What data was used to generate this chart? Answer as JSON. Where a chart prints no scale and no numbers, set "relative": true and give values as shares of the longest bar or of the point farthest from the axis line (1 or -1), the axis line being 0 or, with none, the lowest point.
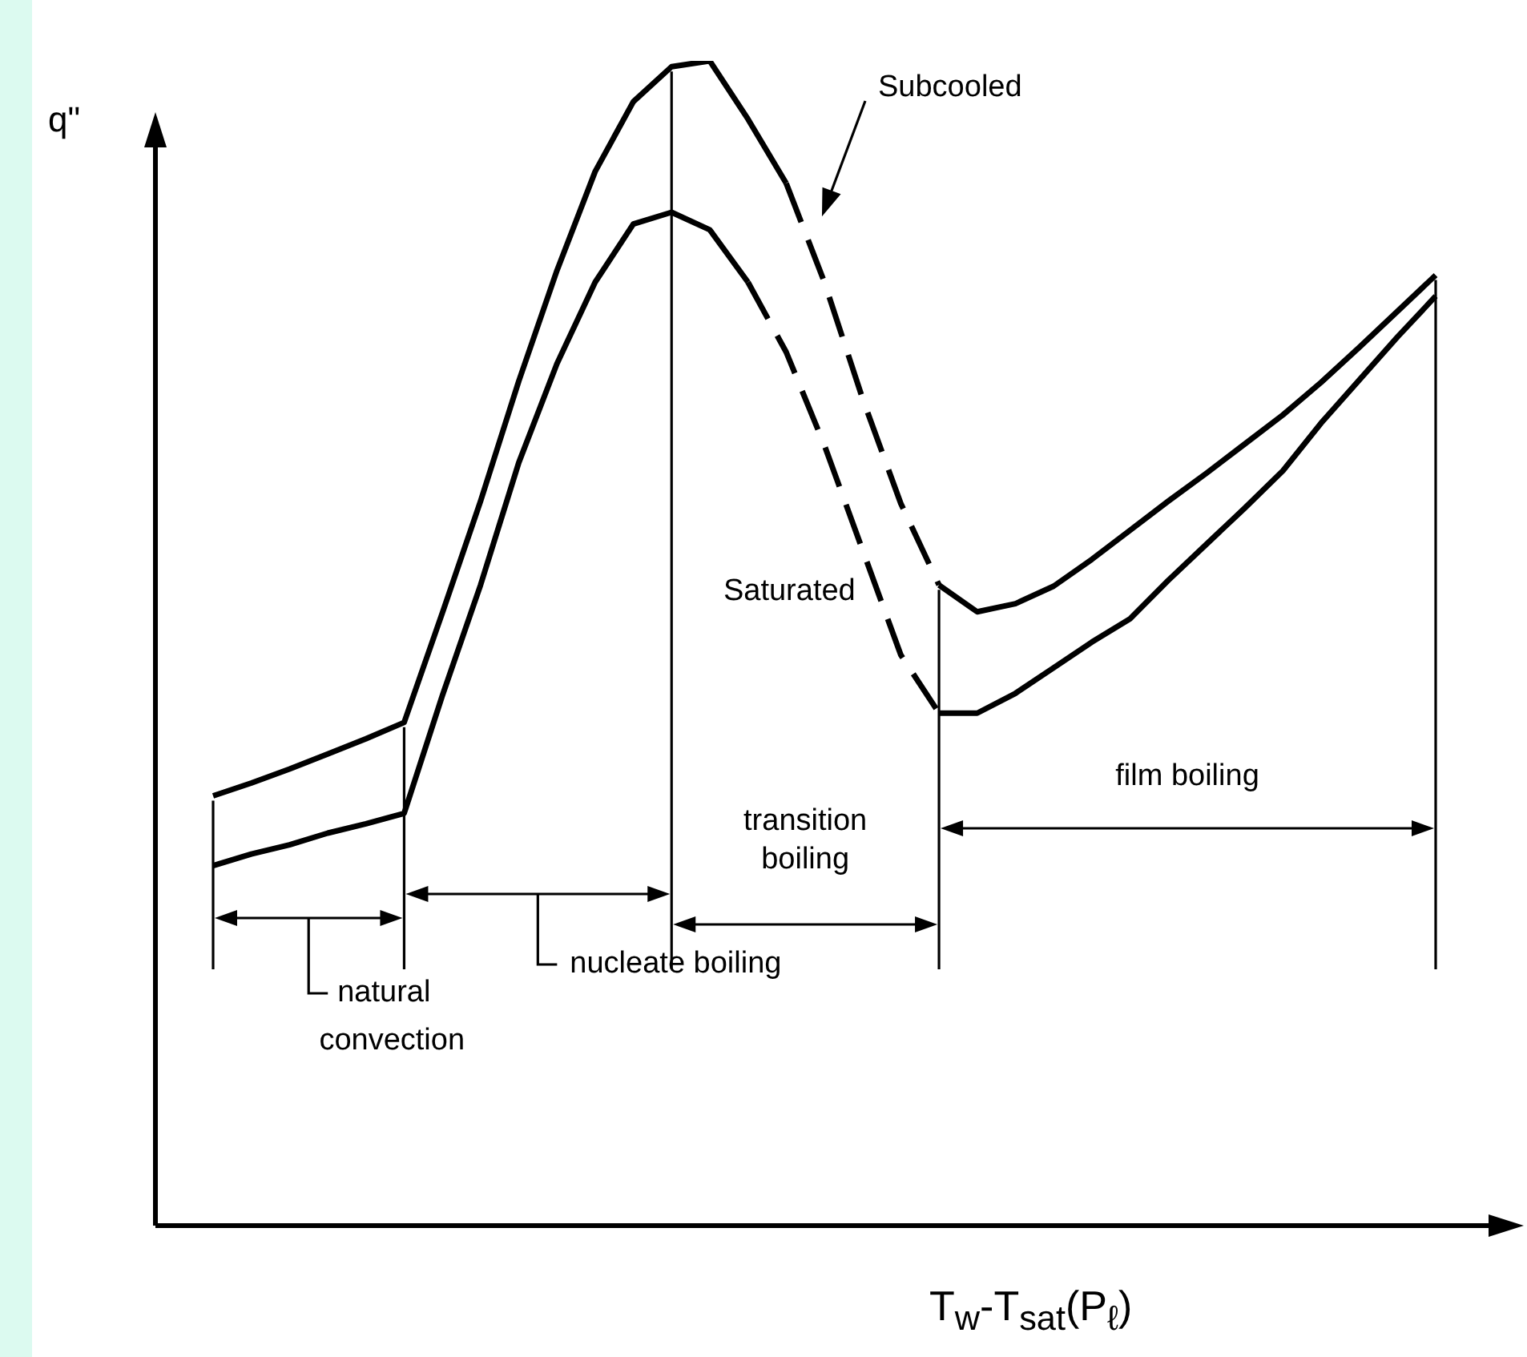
{
  "chart_data": {
    "type": "line",
    "relative": true,
    "ylabel": "q\"",
    "xlabel": "T$_{w}$-T$_{sat}$(P$_{ℓ}$)",
    "legend": false,
    "marker": "none",
    "categories": [
      null,
      null,
      null,
      null,
      null,
      null,
      null,
      null,
      null,
      null,
      null,
      null,
      null,
      null,
      null,
      null,
      null,
      null,
      null,
      null,
      null,
      null,
      null,
      null,
      null,
      null,
      null,
      null,
      null,
      null,
      null,
      null,
      null
    ],
    "series": [
      {
        "color": "#000000",
        "line_style": "solid",
        "values": [
          0.369,
          0.38,
          0.392,
          0.405,
          0.418,
          0.432,
          0.526,
          0.622,
          0.725,
          0.82,
          0.905,
          0.965,
          0.995,
          1,
          0.95,
          0.895,
          null,
          null,
          null,
          null,
          null,
          null,
          null,
          null,
          null,
          null,
          null,
          null,
          null,
          null,
          null,
          null,
          null
        ]
      },
      {
        "name": "Subcooled",
        "color": "#000000",
        "line_style": "dashed",
        "values": [
          null,
          null,
          null,
          null,
          null,
          null,
          null,
          null,
          null,
          null,
          null,
          null,
          null,
          null,
          null,
          0.895,
          0.81,
          0.71,
          0.62,
          0.55,
          null,
          null,
          null,
          null,
          null,
          null,
          null,
          null,
          null,
          null,
          null,
          null,
          null
        ]
      },
      {
        "color": "#000000",
        "line_style": "solid",
        "values": [
          null,
          null,
          null,
          null,
          null,
          null,
          null,
          null,
          null,
          null,
          null,
          null,
          null,
          null,
          null,
          null,
          null,
          null,
          null,
          0.55,
          0.527,
          0.534,
          0.549,
          0.572,
          0.597,
          0.622,
          0.646,
          0.671,
          0.696,
          0.724,
          0.754,
          0.785,
          0.816
        ]
      },
      {
        "color": "#000000",
        "line_style": "solid",
        "values": [
          0.309,
          0.319,
          0.327,
          0.337,
          0.345,
          0.354,
          0.455,
          0.55,
          0.655,
          0.74,
          0.81,
          0.86,
          0.87,
          0.855,
          0.81,
          null,
          null,
          null,
          null,
          null,
          null,
          null,
          null,
          null,
          null,
          null,
          null,
          null,
          null,
          null,
          null,
          null,
          null
        ]
      },
      {
        "name": "Saturated",
        "color": "#000000",
        "line_style": "dashed",
        "values": [
          null,
          null,
          null,
          null,
          null,
          null,
          null,
          null,
          null,
          null,
          null,
          null,
          null,
          null,
          0.81,
          0.75,
          0.67,
          0.58,
          0.49,
          0.44,
          null,
          null,
          null,
          null,
          null,
          null,
          null,
          null,
          null,
          null,
          null,
          null,
          null
        ]
      },
      {
        "color": "#000000",
        "line_style": "solid",
        "values": [
          null,
          null,
          null,
          null,
          null,
          null,
          null,
          null,
          null,
          null,
          null,
          null,
          null,
          null,
          null,
          null,
          null,
          null,
          null,
          0.44,
          0.44,
          0.457,
          0.479,
          0.501,
          0.521,
          0.554,
          0.585,
          0.616,
          0.648,
          0.689,
          0.726,
          0.763,
          0.798
        ]
      }
    ],
    "annotations": [
      "natural convection",
      "nucleate boiling",
      "transition boiling",
      "film boiling"
    ]
  }
}
